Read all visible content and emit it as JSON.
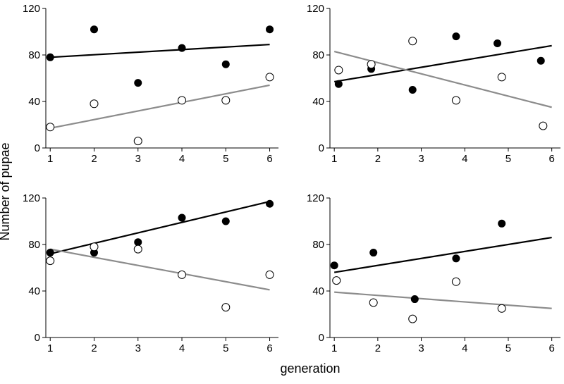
{
  "ylabel": "Number of pupae",
  "xlabel": "generation",
  "chart_data": [
    {
      "type": "scatter",
      "title": "",
      "xlim": [
        0.9,
        6.2
      ],
      "ylim": [
        0,
        120
      ],
      "xticks": [
        1,
        2,
        3,
        4,
        5,
        6
      ],
      "yticks": [
        0,
        40,
        80,
        120
      ],
      "series": [
        {
          "marker": "filled",
          "x": [
            1,
            2,
            3,
            4,
            5,
            6
          ],
          "y": [
            78,
            102,
            56,
            86,
            72,
            102
          ],
          "trend": [
            [
              1,
              78
            ],
            [
              6,
              89
            ]
          ]
        },
        {
          "marker": "open",
          "x": [
            1,
            2,
            3,
            4,
            5,
            6
          ],
          "y": [
            18,
            38,
            6,
            41,
            41,
            61
          ],
          "trend": [
            [
              1,
              17
            ],
            [
              6,
              54
            ]
          ]
        }
      ]
    },
    {
      "type": "scatter",
      "title": "",
      "xlim": [
        0.9,
        6.2
      ],
      "ylim": [
        0,
        120
      ],
      "xticks": [
        1,
        2,
        3,
        4,
        5,
        6
      ],
      "yticks": [
        0,
        40,
        80,
        120
      ],
      "series": [
        {
          "marker": "filled",
          "x": [
            1.1,
            1.85,
            2.8,
            3.8,
            4.75,
            5.75
          ],
          "y": [
            55,
            68,
            50,
            96,
            90,
            75
          ],
          "trend": [
            [
              1,
              57
            ],
            [
              6,
              88
            ]
          ]
        },
        {
          "marker": "open",
          "x": [
            1.1,
            1.85,
            2.8,
            3.8,
            4.85,
            5.8
          ],
          "y": [
            67,
            72,
            92,
            41,
            61,
            19
          ],
          "trend": [
            [
              1,
              83
            ],
            [
              6,
              35
            ]
          ]
        }
      ]
    },
    {
      "type": "scatter",
      "title": "",
      "xlim": [
        0.9,
        6.2
      ],
      "ylim": [
        0,
        120
      ],
      "xticks": [
        1,
        2,
        3,
        4,
        5,
        6
      ],
      "yticks": [
        0,
        40,
        80,
        120
      ],
      "series": [
        {
          "marker": "filled",
          "x": [
            1,
            2,
            3,
            4,
            5,
            6
          ],
          "y": [
            73,
            73,
            82,
            103,
            100,
            115
          ],
          "trend": [
            [
              1,
              72
            ],
            [
              6,
              117
            ]
          ]
        },
        {
          "marker": "open",
          "x": [
            1,
            2,
            3,
            4,
            5,
            6
          ],
          "y": [
            66,
            78,
            76,
            54,
            26,
            54
          ],
          "trend": [
            [
              1,
              76
            ],
            [
              6,
              41
            ]
          ]
        }
      ]
    },
    {
      "type": "scatter",
      "title": "",
      "xlim": [
        0.9,
        6.2
      ],
      "ylim": [
        0,
        120
      ],
      "xticks": [
        1,
        2,
        3,
        4,
        5,
        6
      ],
      "yticks": [
        0,
        40,
        80,
        120
      ],
      "series": [
        {
          "marker": "filled",
          "x": [
            1,
            1.9,
            2.85,
            3.8,
            4.85
          ],
          "y": [
            62,
            73,
            33,
            68,
            98
          ],
          "trend": [
            [
              1,
              56
            ],
            [
              6,
              86
            ]
          ]
        },
        {
          "marker": "open",
          "x": [
            1.05,
            1.9,
            2.8,
            3.8,
            4.85
          ],
          "y": [
            49,
            30,
            16,
            48,
            25
          ],
          "trend": [
            [
              1,
              39
            ],
            [
              6,
              25
            ]
          ]
        }
      ]
    }
  ]
}
